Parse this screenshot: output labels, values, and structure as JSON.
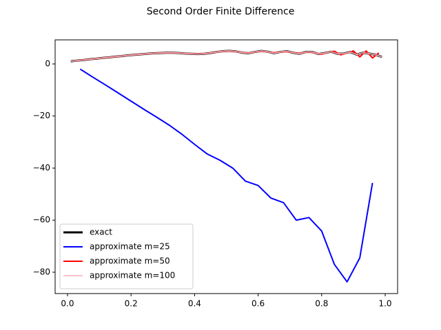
{
  "chart_data": {
    "type": "line",
    "title": "Second Order Finite Difference",
    "xlim": [
      -0.039,
      1.039
    ],
    "ylim": [
      -88.2,
      9.24
    ],
    "xticks": [
      {
        "value": 0,
        "label": "0.0"
      },
      0.2,
      0.4,
      0.6,
      0.8,
      {
        "value": 1,
        "label": "1.0"
      }
    ],
    "yticks": [
      {
        "value": -80,
        "label": "−80"
      },
      {
        "value": -60,
        "label": "−60"
      },
      {
        "value": -40,
        "label": "−40"
      },
      {
        "value": -20,
        "label": "−20"
      },
      0
    ],
    "legend": "lower left",
    "series": [
      {
        "name": "exact",
        "color": "#000000",
        "width": 3,
        "x": [
          0.01,
          0.03,
          0.05,
          0.07,
          0.09,
          0.11,
          0.13,
          0.15,
          0.17,
          0.19,
          0.21,
          0.23,
          0.25,
          0.27,
          0.29,
          0.31,
          0.33,
          0.35,
          0.37,
          0.39,
          0.41,
          0.43,
          0.45,
          0.47,
          0.49,
          0.51,
          0.53,
          0.55,
          0.57,
          0.59,
          0.61,
          0.63,
          0.65,
          0.67,
          0.69,
          0.71,
          0.73,
          0.75,
          0.77,
          0.79,
          0.81,
          0.83,
          0.85,
          0.87,
          0.89,
          0.91,
          0.93,
          0.95,
          0.97,
          0.99
        ],
        "values": [
          1.0,
          1.3,
          1.5,
          1.8,
          2.0,
          2.3,
          2.5,
          2.8,
          3.0,
          3.3,
          3.5,
          3.7,
          3.9,
          4.1,
          4.2,
          4.3,
          4.3,
          4.2,
          4.0,
          3.9,
          3.8,
          3.9,
          4.2,
          4.6,
          4.9,
          5.0,
          4.8,
          4.3,
          4.1,
          4.6,
          5.0,
          4.7,
          4.1,
          4.6,
          4.9,
          4.3,
          3.9,
          4.6,
          4.6,
          3.8,
          4.2,
          4.7,
          3.9,
          4.0,
          4.6,
          3.6,
          4.3,
          4.0,
          3.5,
          2.7
        ]
      },
      {
        "name": "approximate m=25",
        "color": "#0000ff",
        "width": 2,
        "x": [
          0.04,
          0.08,
          0.12,
          0.16,
          0.2,
          0.24,
          0.28,
          0.32,
          0.36,
          0.4,
          0.44,
          0.48,
          0.52,
          0.56,
          0.6,
          0.64,
          0.68,
          0.72,
          0.76,
          0.8,
          0.84,
          0.88,
          0.92,
          0.96
        ],
        "values": [
          -2,
          -5.1,
          -8.1,
          -11.2,
          -14.3,
          -17.4,
          -20.4,
          -23.5,
          -27,
          -30.9,
          -34.6,
          -37,
          -40,
          -45,
          -46.7,
          -51.5,
          -53.3,
          -60,
          -59,
          -64.2,
          -77,
          -83.7,
          -74.5,
          -45.7
        ]
      },
      {
        "name": "approximate m=50",
        "color": "#ff0000",
        "width": 2,
        "x": [
          0.02,
          0.04,
          0.06,
          0.08,
          0.1,
          0.12,
          0.14,
          0.16,
          0.18,
          0.2,
          0.22,
          0.24,
          0.26,
          0.28,
          0.3,
          0.32,
          0.34,
          0.36,
          0.38,
          0.4,
          0.42,
          0.44,
          0.46,
          0.48,
          0.5,
          0.52,
          0.54,
          0.56,
          0.58,
          0.6,
          0.62,
          0.64,
          0.66,
          0.68,
          0.7,
          0.72,
          0.74,
          0.76,
          0.78,
          0.8,
          0.82,
          0.84,
          0.86,
          0.88,
          0.9,
          0.92,
          0.94,
          0.96,
          0.98
        ],
        "values": [
          1.15,
          1.4,
          1.65,
          1.9,
          2.15,
          2.4,
          2.65,
          2.9,
          3.15,
          3.4,
          3.6,
          3.8,
          4.0,
          4.15,
          4.25,
          4.3,
          4.25,
          4.1,
          3.95,
          3.85,
          3.85,
          4.05,
          4.4,
          4.75,
          4.95,
          4.9,
          4.55,
          4.2,
          4.35,
          4.8,
          4.85,
          4.4,
          4.35,
          4.75,
          4.6,
          4.1,
          4.25,
          4.6,
          4.2,
          3.7,
          4.5,
          4.9,
          3.5,
          4.2,
          5.0,
          2.7,
          5.0,
          2.3,
          4.2
        ]
      },
      {
        "name": "approximate m=100",
        "color": "#ffc0cb",
        "width": 1.5,
        "x": [
          0.01,
          0.03,
          0.05,
          0.07,
          0.09,
          0.11,
          0.13,
          0.15,
          0.17,
          0.19,
          0.21,
          0.23,
          0.25,
          0.27,
          0.29,
          0.31,
          0.33,
          0.35,
          0.37,
          0.39,
          0.41,
          0.43,
          0.45,
          0.47,
          0.49,
          0.51,
          0.53,
          0.55,
          0.57,
          0.59,
          0.61,
          0.63,
          0.65,
          0.67,
          0.69,
          0.71,
          0.73,
          0.75,
          0.77,
          0.79,
          0.81,
          0.83,
          0.85,
          0.87,
          0.89,
          0.91,
          0.93,
          0.95,
          0.97,
          0.99
        ],
        "values": [
          1.0,
          1.3,
          1.5,
          1.8,
          2.0,
          2.3,
          2.5,
          2.8,
          3.0,
          3.3,
          3.5,
          3.7,
          3.9,
          4.1,
          4.2,
          4.3,
          4.3,
          4.2,
          4.0,
          3.9,
          3.8,
          3.9,
          4.2,
          4.6,
          4.9,
          5.0,
          4.8,
          4.3,
          4.1,
          4.6,
          5.0,
          4.7,
          4.1,
          4.6,
          4.9,
          4.3,
          3.9,
          4.6,
          4.6,
          3.8,
          4.2,
          4.7,
          3.9,
          4.0,
          4.6,
          3.6,
          4.3,
          4.0,
          3.5,
          2.7
        ]
      }
    ]
  }
}
